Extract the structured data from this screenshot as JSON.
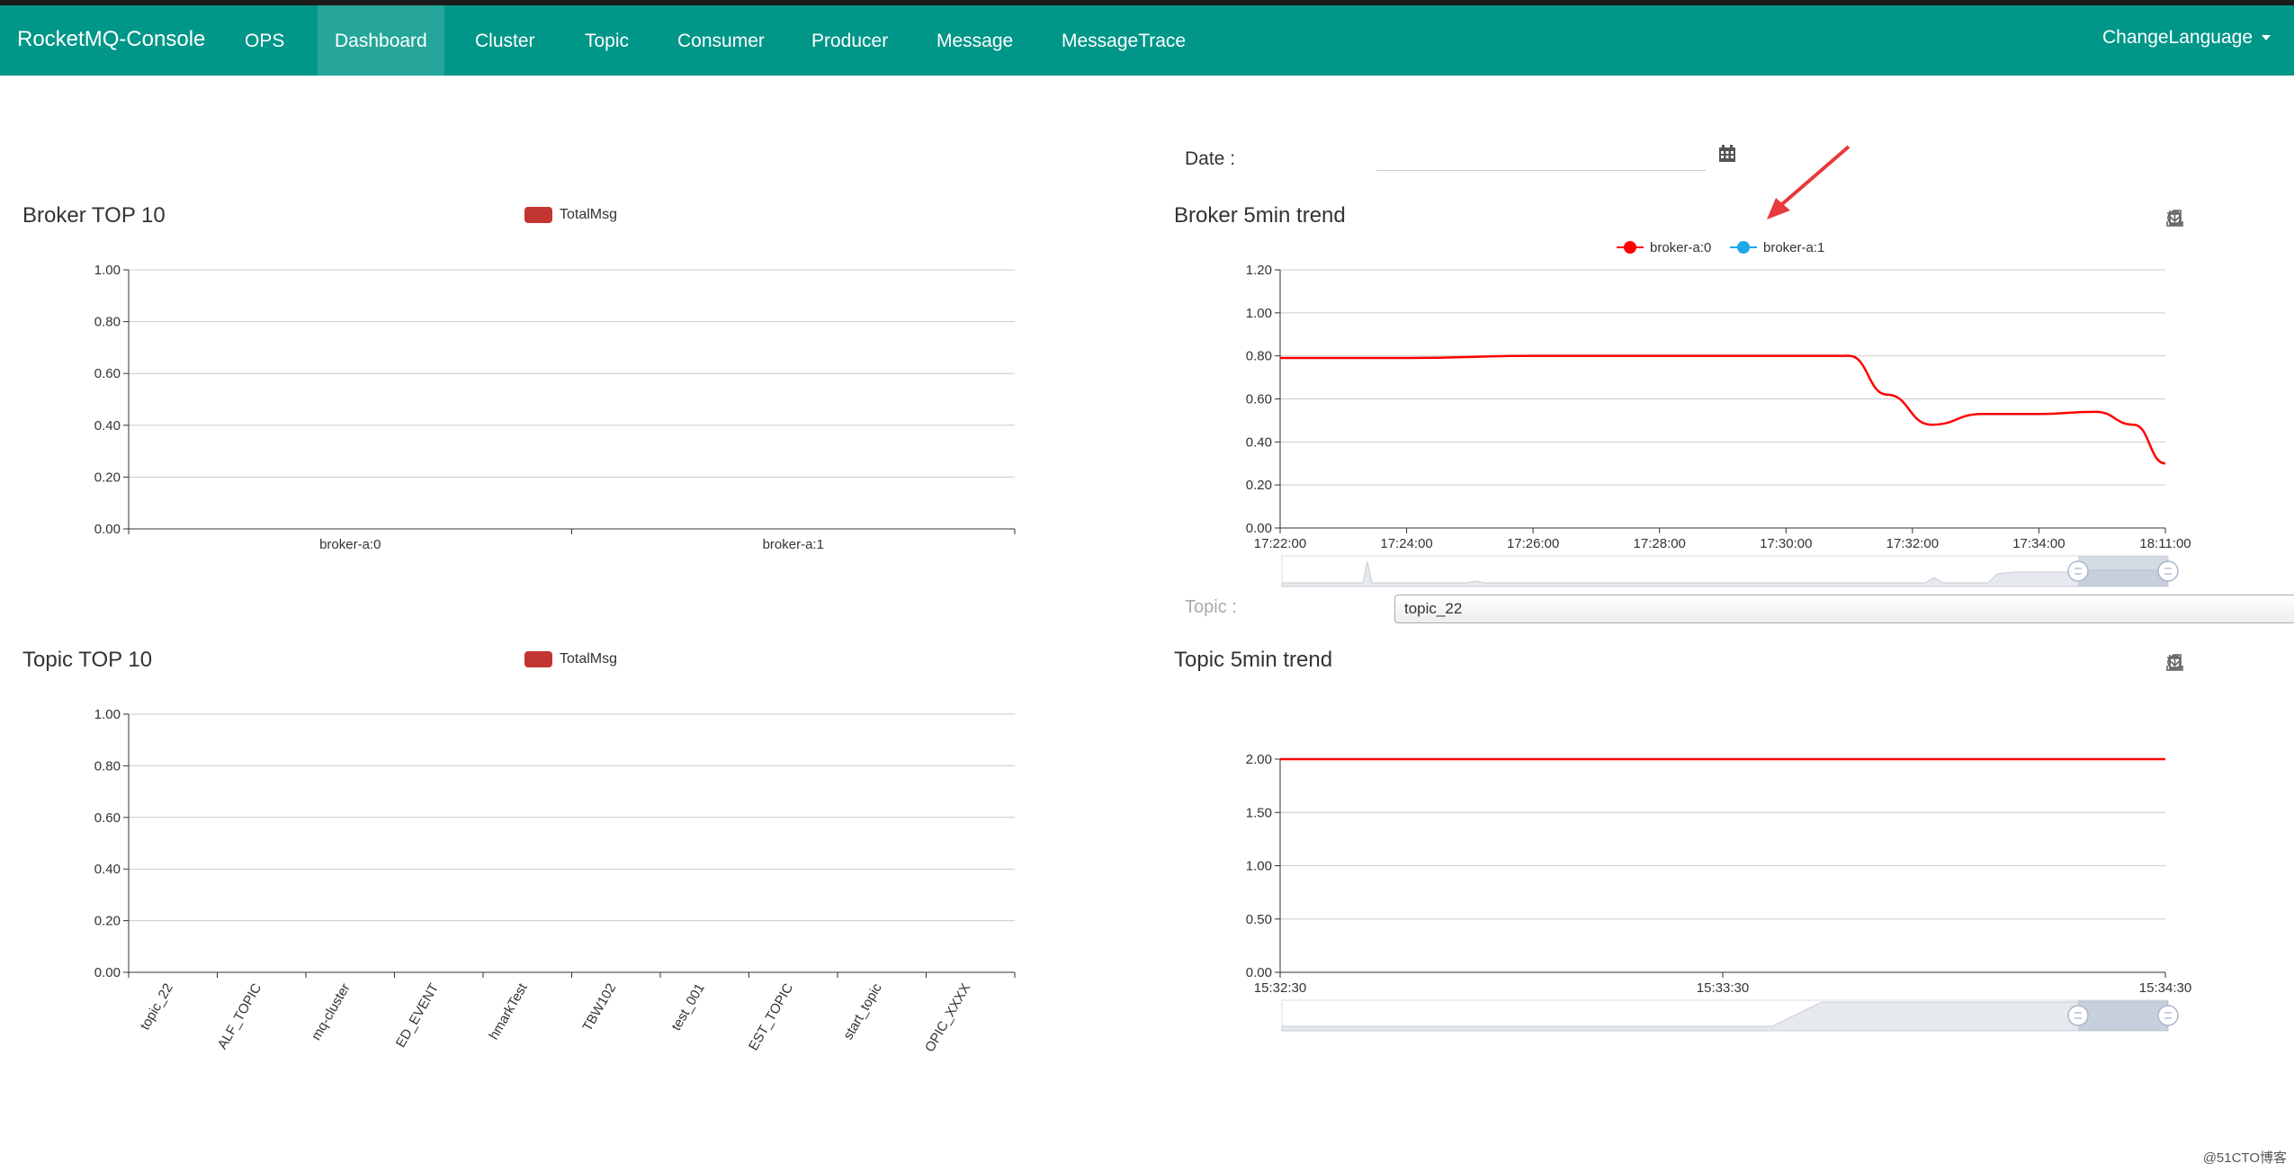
{
  "nav": {
    "brand": "RocketMQ-Console",
    "items": [
      {
        "label": "OPS"
      },
      {
        "label": "Dashboard"
      },
      {
        "label": "Cluster"
      },
      {
        "label": "Topic"
      },
      {
        "label": "Consumer"
      },
      {
        "label": "Producer"
      },
      {
        "label": "Message"
      },
      {
        "label": "MessageTrace"
      }
    ],
    "active": "Dashboard",
    "change_language": "ChangeLanguage"
  },
  "date_filter": {
    "label": "Date :",
    "value": ""
  },
  "topic_filter": {
    "label": "Topic :",
    "selected": "topic_22"
  },
  "colors": {
    "navbar": "#009688",
    "bar_series": "#c23531",
    "broker_a0": "#ff0000",
    "broker_a1": "#1ea8e8"
  },
  "watermark": "@51CTO博客",
  "chart_data": [
    {
      "id": "broker_top10",
      "type": "bar",
      "title": "Broker TOP 10",
      "legend": [
        "TotalMsg"
      ],
      "categories": [
        "broker-a:0",
        "broker-a:1"
      ],
      "series": [
        {
          "name": "TotalMsg",
          "values": [
            0,
            0
          ]
        }
      ],
      "yticks": [
        "0.00",
        "0.20",
        "0.40",
        "0.60",
        "0.80",
        "1.00"
      ],
      "ylim": [
        0,
        1
      ],
      "grid": true
    },
    {
      "id": "broker_5min_trend",
      "type": "line",
      "title": "Broker 5min trend",
      "legend": [
        "broker-a:0",
        "broker-a:1"
      ],
      "xticks": [
        "17:22:00",
        "17:24:00",
        "17:26:00",
        "17:28:00",
        "17:30:00",
        "17:32:00",
        "17:34:00",
        "18:11:00"
      ],
      "yticks": [
        "0.00",
        "0.20",
        "0.40",
        "0.60",
        "0.80",
        "1.00",
        "1.20"
      ],
      "ylim": [
        0,
        1.2
      ],
      "series": [
        {
          "name": "broker-a:0",
          "points": [
            [
              0,
              0.79
            ],
            [
              2,
              0.79
            ],
            [
              4,
              0.8
            ],
            [
              6,
              0.8
            ],
            [
              9,
              0.8
            ],
            [
              9.6,
              0.62
            ],
            [
              10.3,
              0.48
            ],
            [
              11.1,
              0.53
            ],
            [
              12,
              0.53
            ],
            [
              12.9,
              0.54
            ],
            [
              13.5,
              0.48
            ],
            [
              14,
              0.3
            ]
          ]
        }
      ],
      "grid": true,
      "data_zoom": true
    },
    {
      "id": "topic_top10",
      "type": "bar",
      "title": "Topic TOP 10",
      "legend": [
        "TotalMsg"
      ],
      "categories": [
        "topic_22",
        "ALF_TOPIC",
        "mq-cluster",
        "ED_EVENT",
        "hmarkTest",
        "TBW102",
        "test_001",
        "EST_TOPIC",
        "start_topic",
        "OPIC_XXXX"
      ],
      "series": [
        {
          "name": "TotalMsg",
          "values": [
            0,
            0,
            0,
            0,
            0,
            0,
            0,
            0,
            0,
            0
          ]
        }
      ],
      "yticks": [
        "0.00",
        "0.20",
        "0.40",
        "0.60",
        "0.80",
        "1.00"
      ],
      "ylim": [
        0,
        1
      ],
      "grid": true
    },
    {
      "id": "topic_5min_trend",
      "type": "line",
      "title": "Topic 5min trend",
      "xticks": [
        "15:32:30",
        "15:33:30",
        "15:34:30"
      ],
      "yticks": [
        "0.00",
        "0.50",
        "1.00",
        "1.50",
        "2.00"
      ],
      "ylim": [
        0,
        2
      ],
      "series": [
        {
          "points": [
            [
              0,
              2
            ],
            [
              2,
              2
            ]
          ]
        }
      ],
      "grid": true,
      "data_zoom": true
    }
  ]
}
